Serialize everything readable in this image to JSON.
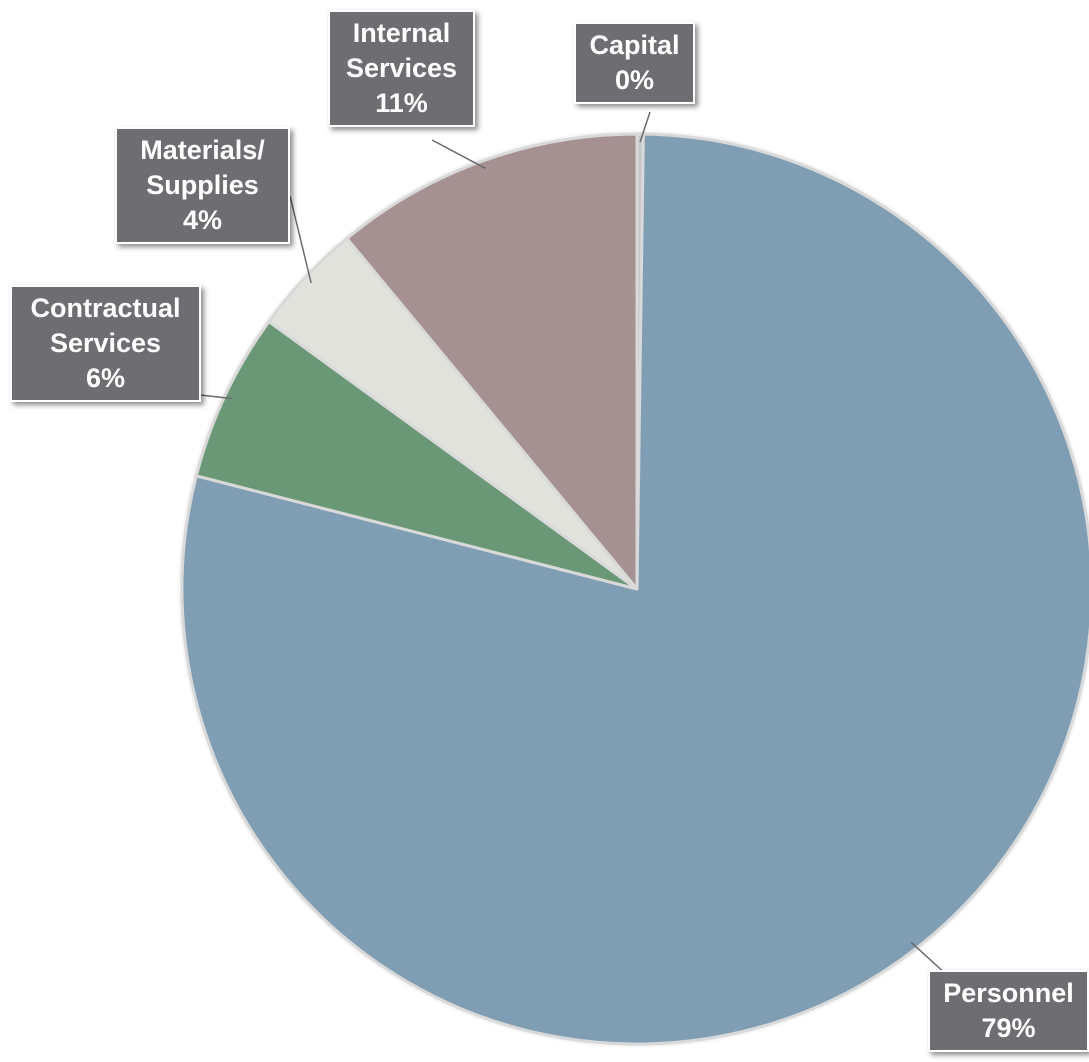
{
  "chart_data": {
    "type": "pie",
    "slices": [
      {
        "name": "Personnel",
        "value": 79,
        "label_lines": [
          "Personnel",
          "79%"
        ],
        "color": "#7f9eb4"
      },
      {
        "name": "Contractual Services",
        "value": 6,
        "label_lines": [
          "Contractual",
          "Services",
          "6%"
        ],
        "color": "#6a9877"
      },
      {
        "name": "Materials/ Supplies",
        "value": 4,
        "label_lines": [
          "Materials/",
          "Supplies",
          "4%"
        ],
        "color": "#e2e2dc"
      },
      {
        "name": "Internal Services",
        "value": 11,
        "label_lines": [
          "Internal",
          "Services",
          "11%"
        ],
        "color": "#a69192"
      },
      {
        "name": "Capital",
        "value": 0,
        "label_lines": [
          "Capital",
          "0%"
        ],
        "color": "#c6c6c6"
      }
    ],
    "start_angle_deg": 0,
    "direction": "clockwise",
    "label_style": "callout-boxes",
    "colors": {
      "label_bg": "#6e6e72",
      "label_text": "#ffffff",
      "slice_border": "#d9d9d9"
    }
  }
}
